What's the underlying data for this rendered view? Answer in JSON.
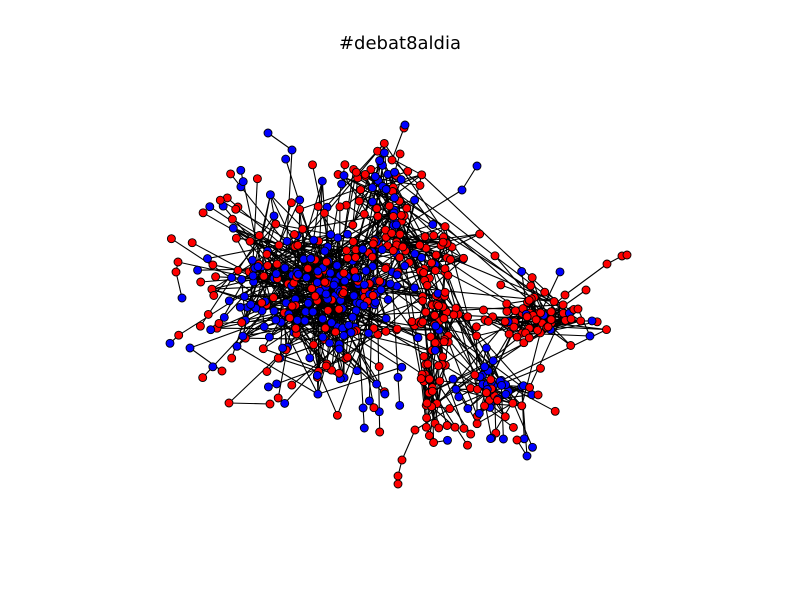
{
  "figure": {
    "title": "#debat8aldia"
  },
  "colors": {
    "node_group_a": "#ff0000",
    "node_group_b": "#0000ff",
    "edge": "#000000",
    "background": "#ffffff"
  },
  "graph": {
    "type": "network",
    "layout": "force-directed",
    "node_groups": [
      "red",
      "blue"
    ]
  }
}
